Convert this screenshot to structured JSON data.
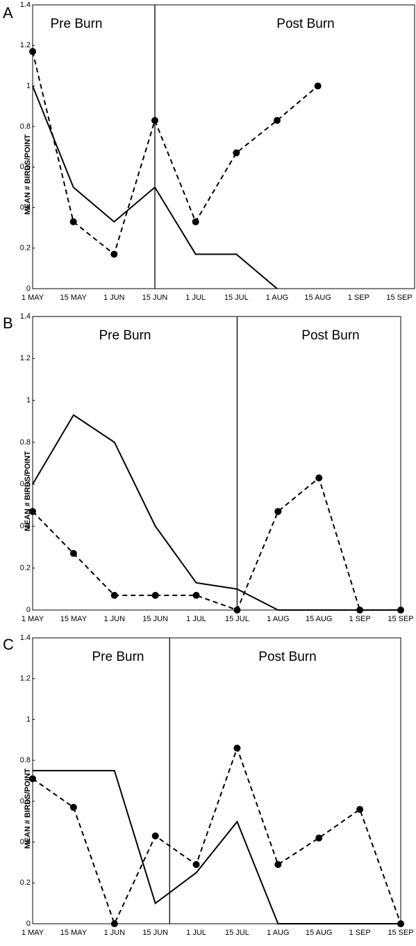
{
  "chart_data": [
    {
      "type": "line",
      "panel": "A",
      "y_label": "MEAN # BIRDS/POINT",
      "annotations": [
        "Pre Burn",
        "Post Burn"
      ],
      "categories": [
        "1 MAY",
        "15 MAY",
        "1 JUN",
        "15 JUN",
        "1 JUL",
        "15 JUL",
        "1 AUG",
        "15 AUG",
        "1 SEP",
        "15 SEP"
      ],
      "ylim": [
        0,
        1.4
      ],
      "yticks": [
        0,
        0.2,
        0.4,
        0.6,
        0.8,
        1,
        1.2,
        1.4
      ],
      "series": [
        {
          "color": "#000000",
          "line_style": "solid",
          "marker": false,
          "values": [
            1.0,
            0.5,
            0.33,
            0.5,
            0.17,
            0.17,
            0,
            null,
            null,
            null
          ]
        },
        {
          "color": "#000000",
          "line_style": "dashed",
          "marker": true,
          "values": [
            1.17,
            0.33,
            0.17,
            0.83,
            0.33,
            0.67,
            0.83,
            1.0,
            null,
            null
          ]
        }
      ]
    },
    {
      "type": "line",
      "panel": "B",
      "y_label": "MEAN # BIRDS/POINT",
      "annotations": [
        "Pre Burn",
        "Post Burn"
      ],
      "categories": [
        "1 MAY",
        "15 MAY",
        "1 JUN",
        "15 JUN",
        "1 JUL",
        "15 JUL",
        "1 AUG",
        "15 AUG",
        "1 SEP",
        "15 SEP"
      ],
      "ylim": [
        0,
        1.4
      ],
      "yticks": [
        0,
        0.2,
        0.4,
        0.6,
        0.8,
        1,
        1.2,
        1.4
      ],
      "series": [
        {
          "color": "#000000",
          "line_style": "solid",
          "marker": false,
          "values": [
            0.6,
            0.93,
            0.8,
            0.4,
            0.13,
            0.1,
            0,
            0,
            0,
            0
          ]
        },
        {
          "color": "#000000",
          "line_style": "dashed",
          "marker": true,
          "values": [
            0.47,
            0.27,
            0.07,
            0.07,
            0.07,
            0,
            0.47,
            0.63,
            0,
            0
          ]
        }
      ]
    },
    {
      "type": "line",
      "panel": "C",
      "y_label": "MEAN # BIRDS/POINT",
      "annotations": [
        "Pre Burn",
        "Post Burn"
      ],
      "categories": [
        "1 MAY",
        "15 MAY",
        "1 JUN",
        "15 JUN",
        "1 JUL",
        "15 JUL",
        "1 AUG",
        "15 AUG",
        "1 SEP",
        "15 SEP"
      ],
      "ylim": [
        0,
        1.4
      ],
      "yticks": [
        0,
        0.2,
        0.4,
        0.6,
        0.8,
        1,
        1.2,
        1.4
      ],
      "series": [
        {
          "color": "#000000",
          "line_style": "solid",
          "marker": false,
          "values": [
            0.75,
            0.75,
            0.75,
            0.1,
            0.25,
            0.5,
            0,
            0,
            0,
            0
          ]
        },
        {
          "color": "#000000",
          "line_style": "dashed",
          "marker": true,
          "values": [
            0.71,
            0.57,
            0,
            0.43,
            0.29,
            0.86,
            0.29,
            0.42,
            0.56,
            0
          ]
        }
      ]
    }
  ]
}
